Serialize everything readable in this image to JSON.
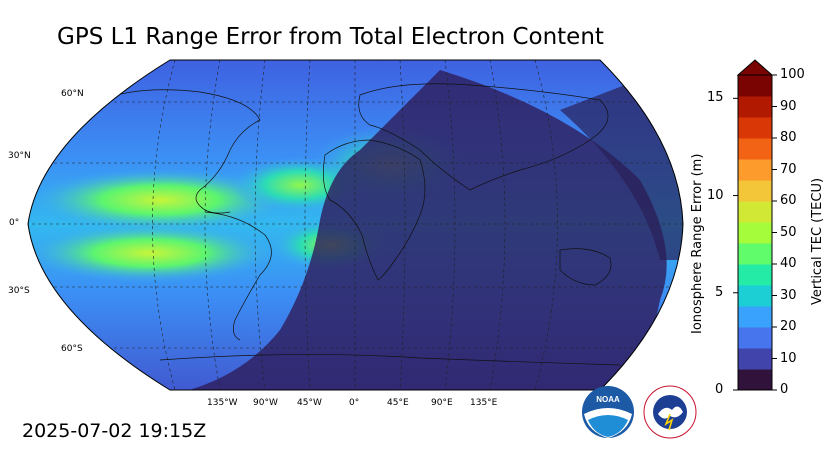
{
  "title": "GPS L1 Range Error from Total Electron Content",
  "timestamp": "2025-07-02 19:15Z",
  "map": {
    "projection": "Robinson",
    "lat_labels": [
      "60°N",
      "30°N",
      "0°",
      "30°S",
      "60°S"
    ],
    "lon_labels": [
      "135°W",
      "90°W",
      "45°W",
      "0°",
      "45°E",
      "90°E",
      "135°E"
    ],
    "night_shading": "dark overlay on night hemisphere (eastern half)",
    "colormap": "turbo"
  },
  "colorbar": {
    "left_label": "Ionosphere Range Error (m)",
    "right_label": "Vertical TEC (TECU)",
    "left_ticks": [
      "0",
      "5",
      "10",
      "15"
    ],
    "right_ticks": [
      "0",
      "10",
      "20",
      "30",
      "40",
      "50",
      "60",
      "70",
      "80",
      "90",
      "100"
    ],
    "extend": "max",
    "colors": [
      "#30123b",
      "#4145ab",
      "#4675ed",
      "#39a2fc",
      "#1bcfd4",
      "#24eca6",
      "#61fc6c",
      "#a4fc3b",
      "#d1e834",
      "#f3c63a",
      "#fe9b2d",
      "#f36315",
      "#d93806",
      "#b11901",
      "#7a0402"
    ]
  },
  "logos": {
    "noaa": "NOAA",
    "nws": "NATIONAL WEATHER SERVICE"
  }
}
